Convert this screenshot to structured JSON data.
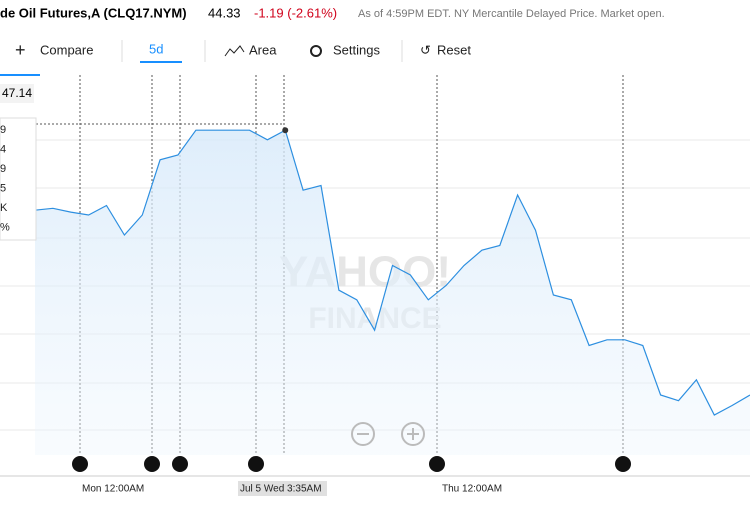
{
  "header": {
    "symbol": "de Oil Futures,A (CLQ17.NYM)",
    "price": "44.33",
    "change": "-1.19 (-2.61%)",
    "status": "As of 4:59PM EDT. NY Mercantile Delayed Price. Market open."
  },
  "toolbar": {
    "compare": "Compare",
    "range": "5d",
    "chart_type": "Area",
    "settings": "Settings",
    "reset": "Reset"
  },
  "tooltip": [
    "9",
    "4",
    "9",
    "5",
    "K",
    "%"
  ],
  "price_label": "47.14",
  "watermark": [
    "YAHOO!",
    "FINANCE"
  ],
  "chart_data": {
    "type": "line",
    "color": "#2d8fe0",
    "xtick_labels": [
      "Mon 12:00AM",
      "Jul 5 Wed 3:35AM",
      "Thu 12:00AM"
    ],
    "ylim": [
      43.34,
      47.33
    ],
    "values": [
      45.91,
      45.93,
      45.89,
      45.86,
      45.96,
      45.65,
      45.86,
      46.44,
      46.49,
      46.75,
      46.75,
      46.75,
      46.75,
      46.65,
      46.75,
      46.12,
      46.17,
      45.07,
      44.97,
      44.65,
      45.33,
      45.23,
      44.97,
      45.12,
      45.33,
      45.49,
      45.54,
      46.07,
      45.7,
      45.02,
      44.97,
      44.49,
      44.55,
      44.55,
      44.49,
      43.97,
      43.91,
      44.13,
      43.76,
      43.86,
      43.97
    ]
  }
}
